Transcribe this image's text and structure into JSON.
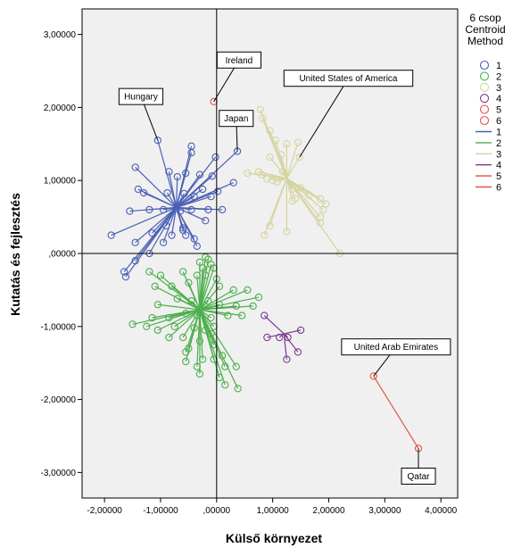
{
  "chart_data": {
    "type": "scatter",
    "title": "",
    "xlabel": "Külső környezet",
    "ylabel": "Kutatás és fejlesztés",
    "xlim": [
      -2.4,
      4.3
    ],
    "ylim": [
      -3.35,
      3.35
    ],
    "xticks": [
      -2,
      -1,
      0,
      1,
      2,
      3,
      4
    ],
    "yticks": [
      3,
      2,
      1,
      0,
      -1,
      -2,
      -3
    ],
    "xtick_labels": [
      "-2,00000",
      "-1,00000",
      ",00000",
      "1,00000",
      "2,00000",
      "3,00000",
      "4,00000"
    ],
    "ytick_labels": [
      "3,00000",
      "2,00000",
      "1,00000",
      ",00000",
      "-1,00000",
      "-2,00000",
      "-3,00000"
    ],
    "reference_lines": {
      "x": 0,
      "y": 0
    },
    "grid": false,
    "legend": {
      "title_lines": [
        "6 csop",
        "Centroid",
        "Method"
      ],
      "placement": "right",
      "marker_entries": [
        "1",
        "2",
        "3",
        "4",
        "5",
        "6"
      ],
      "line_entries": [
        "1",
        "2",
        "3",
        "4",
        "5",
        "6"
      ]
    },
    "colors": [
      "#4a5fb5",
      "#4caf4c",
      "#d6d3a0",
      "#7b3c8f",
      "#e2544a",
      "#e2544a"
    ],
    "series": [
      {
        "cluster": "1",
        "centroid": [
          -0.72,
          0.63
        ],
        "points": [
          [
            -1.05,
            1.55
          ],
          [
            -0.45,
            1.47
          ],
          [
            -0.45,
            1.38
          ],
          [
            -0.02,
            1.32
          ],
          [
            0.37,
            1.4
          ],
          [
            -1.45,
            1.18
          ],
          [
            -0.85,
            1.12
          ],
          [
            -0.55,
            1.1
          ],
          [
            -0.3,
            1.08
          ],
          [
            -0.08,
            1.06
          ],
          [
            -0.7,
            1.05
          ],
          [
            -1.4,
            0.88
          ],
          [
            -1.3,
            0.83
          ],
          [
            -0.88,
            0.83
          ],
          [
            -0.58,
            0.82
          ],
          [
            -0.25,
            0.88
          ],
          [
            0.02,
            0.85
          ],
          [
            0.3,
            0.97
          ],
          [
            -0.4,
            0.78
          ],
          [
            -0.1,
            0.78
          ],
          [
            -1.55,
            0.58
          ],
          [
            -1.2,
            0.6
          ],
          [
            -0.95,
            0.6
          ],
          [
            -0.65,
            0.58
          ],
          [
            -0.45,
            0.6
          ],
          [
            -0.15,
            0.6
          ],
          [
            0.1,
            0.6
          ],
          [
            -1.88,
            0.25
          ],
          [
            -1.45,
            0.15
          ],
          [
            -1.15,
            0.28
          ],
          [
            -0.9,
            0.38
          ],
          [
            -0.6,
            0.32
          ],
          [
            -0.2,
            0.45
          ],
          [
            -1.2,
            0.0
          ],
          [
            -0.95,
            0.15
          ],
          [
            -0.8,
            0.25
          ],
          [
            -0.55,
            0.25
          ],
          [
            -0.4,
            0.2
          ],
          [
            -0.35,
            0.1
          ],
          [
            -1.65,
            -0.25
          ],
          [
            -1.62,
            -0.32
          ],
          [
            -1.45,
            -0.1
          ],
          [
            -0.6,
            0.35
          ]
        ]
      },
      {
        "cluster": "2",
        "centroid": [
          -0.3,
          -0.77
        ],
        "points": [
          [
            -0.2,
            -0.05
          ],
          [
            -0.15,
            -0.08
          ],
          [
            -0.3,
            -0.12
          ],
          [
            -0.1,
            -0.15
          ],
          [
            -0.05,
            -0.2
          ],
          [
            -0.25,
            -0.2
          ],
          [
            -1.2,
            -0.25
          ],
          [
            -1.0,
            -0.3
          ],
          [
            -0.6,
            -0.25
          ],
          [
            -0.35,
            -0.3
          ],
          [
            -0.2,
            -0.3
          ],
          [
            0.0,
            -0.35
          ],
          [
            -1.1,
            -0.45
          ],
          [
            -0.8,
            -0.45
          ],
          [
            -0.5,
            -0.4
          ],
          [
            0.05,
            -0.45
          ],
          [
            0.3,
            -0.5
          ],
          [
            0.55,
            -0.5
          ],
          [
            0.75,
            -0.6
          ],
          [
            -1.05,
            -0.7
          ],
          [
            -0.7,
            -0.62
          ],
          [
            -0.45,
            -0.65
          ],
          [
            -0.15,
            -0.65
          ],
          [
            0.05,
            -0.7
          ],
          [
            0.35,
            -0.72
          ],
          [
            0.65,
            -0.72
          ],
          [
            -1.15,
            -0.88
          ],
          [
            -0.85,
            -0.88
          ],
          [
            -0.55,
            -0.82
          ],
          [
            -0.35,
            -0.85
          ],
          [
            -0.1,
            -0.88
          ],
          [
            0.2,
            -0.85
          ],
          [
            0.45,
            -0.85
          ],
          [
            -1.5,
            -0.97
          ],
          [
            -1.25,
            -1.0
          ],
          [
            -1.05,
            -1.05
          ],
          [
            -0.75,
            -1.0
          ],
          [
            -0.4,
            -1.02
          ],
          [
            -0.2,
            -1.05
          ],
          [
            -0.05,
            -1.0
          ],
          [
            -0.85,
            -1.15
          ],
          [
            -0.6,
            -1.15
          ],
          [
            -0.3,
            -1.2
          ],
          [
            -0.05,
            -1.25
          ],
          [
            -0.5,
            -1.3
          ],
          [
            -0.55,
            -1.35
          ],
          [
            -0.25,
            -1.45
          ],
          [
            -0.05,
            -1.45
          ],
          [
            0.1,
            -1.4
          ],
          [
            -0.55,
            -1.48
          ],
          [
            -0.35,
            -1.55
          ],
          [
            0.15,
            -1.55
          ],
          [
            0.35,
            -1.55
          ],
          [
            -0.3,
            -1.65
          ],
          [
            0.05,
            -1.7
          ],
          [
            0.15,
            -1.8
          ],
          [
            0.38,
            -1.85
          ],
          [
            -0.1,
            -1.1
          ]
        ]
      },
      {
        "cluster": "3",
        "centroid": [
          1.25,
          1.03
        ],
        "points": [
          [
            0.78,
            1.97
          ],
          [
            0.82,
            1.85
          ],
          [
            0.95,
            1.68
          ],
          [
            1.05,
            1.55
          ],
          [
            1.45,
            1.52
          ],
          [
            1.25,
            1.5
          ],
          [
            0.95,
            1.32
          ],
          [
            1.15,
            1.35
          ],
          [
            1.48,
            1.32
          ],
          [
            1.18,
            1.12
          ],
          [
            0.75,
            1.12
          ],
          [
            0.55,
            1.1
          ],
          [
            0.8,
            1.08
          ],
          [
            0.9,
            1.02
          ],
          [
            1.0,
            1.0
          ],
          [
            1.08,
            0.98
          ],
          [
            1.5,
            0.9
          ],
          [
            1.35,
            0.88
          ],
          [
            1.65,
            0.8
          ],
          [
            1.85,
            0.75
          ],
          [
            1.4,
            0.75
          ],
          [
            1.35,
            0.72
          ],
          [
            1.95,
            0.68
          ],
          [
            1.9,
            0.6
          ],
          [
            1.85,
            0.5
          ],
          [
            1.85,
            0.42
          ],
          [
            1.25,
            0.3
          ],
          [
            0.85,
            0.25
          ],
          [
            0.95,
            0.38
          ],
          [
            2.2,
            0.0
          ]
        ]
      },
      {
        "cluster": "4",
        "centroid": [
          1.2,
          -1.1
        ],
        "points": [
          [
            0.85,
            -0.85
          ],
          [
            0.9,
            -1.15
          ],
          [
            1.12,
            -1.15
          ],
          [
            1.25,
            -1.45
          ],
          [
            1.45,
            -1.35
          ],
          [
            1.5,
            -1.05
          ],
          [
            1.27,
            -1.15
          ]
        ]
      },
      {
        "cluster": "5",
        "centroid": [
          -0.05,
          2.08
        ],
        "points": [
          [
            -0.05,
            2.08
          ]
        ]
      },
      {
        "cluster": "6",
        "centroid": [
          2.8,
          -1.68
        ],
        "points": [
          [
            2.8,
            -1.68
          ],
          [
            3.6,
            -2.67
          ]
        ]
      }
    ],
    "annotations": [
      {
        "text": "Ireland",
        "point": [
          -0.05,
          2.08
        ],
        "label_at": [
          0.4,
          2.65
        ]
      },
      {
        "text": "Hungary",
        "point": [
          -1.05,
          1.55
        ],
        "label_at": [
          -1.35,
          2.15
        ]
      },
      {
        "text": "Japan",
        "point": [
          0.37,
          1.4
        ],
        "label_at": [
          0.35,
          1.85
        ]
      },
      {
        "text": "United States of America",
        "point": [
          1.48,
          1.32
        ],
        "label_at": [
          2.35,
          2.4
        ]
      },
      {
        "text": "United Arab Emirates",
        "point": [
          2.8,
          -1.68
        ],
        "label_at": [
          3.2,
          -1.28
        ]
      },
      {
        "text": "Qatar",
        "point": [
          3.6,
          -2.67
        ],
        "label_at": [
          3.6,
          -3.05
        ]
      }
    ]
  }
}
